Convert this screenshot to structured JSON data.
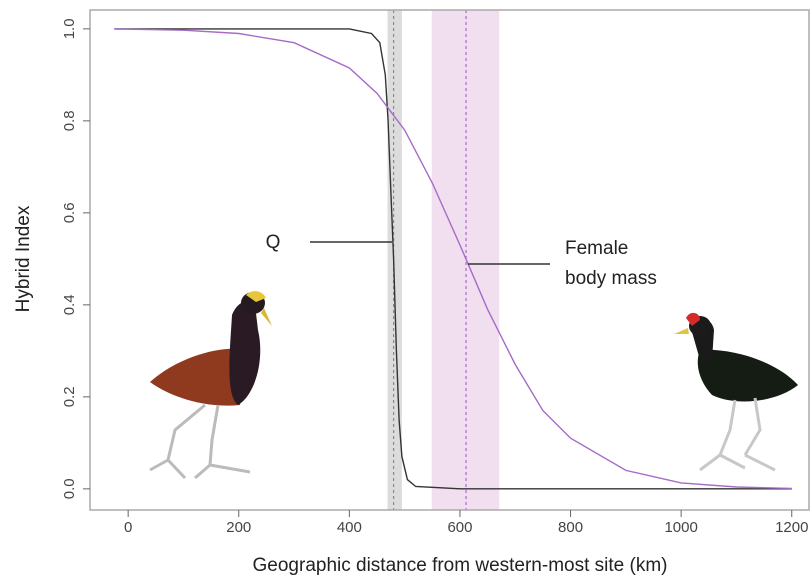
{
  "chart_data": {
    "type": "line",
    "xlabel": "Geographic distance from western-most site (km)",
    "ylabel": "Hybrid Index",
    "xlim": [
      -69,
      1233
    ],
    "ylim": [
      -0.046,
      1.041
    ],
    "xticks": [
      0,
      200,
      400,
      600,
      800,
      1000,
      1200
    ],
    "yticks": [
      {
        "value": 0,
        "label": "0.0"
      },
      0.2,
      0.4,
      0.6,
      0.8,
      {
        "value": 1,
        "label": "1.0"
      }
    ],
    "bands": [
      {
        "range": [
          469,
          495
        ],
        "center": 480,
        "color": "#dcdcdc",
        "line_color": "#888888"
      },
      {
        "range": [
          549,
          671
        ],
        "center": 611,
        "color": "#f1deef",
        "line_color": "#a56bc7"
      }
    ],
    "series": [
      {
        "color": "#333333",
        "x": [
          -25,
          100,
          200,
          300,
          400,
          440,
          455,
          465,
          470,
          475,
          480,
          485,
          490,
          495,
          505,
          520,
          600,
          800,
          1000,
          1200
        ],
        "values": [
          1,
          1,
          1,
          1,
          1,
          0.99,
          0.97,
          0.9,
          0.8,
          0.65,
          0.5,
          0.3,
          0.15,
          0.07,
          0.02,
          0.005,
          0,
          0,
          0,
          0
        ]
      },
      {
        "color": "#a56bc7",
        "x": [
          -25,
          100,
          200,
          300,
          400,
          450,
          500,
          550,
          600,
          650,
          700,
          750,
          800,
          900,
          1000,
          1100,
          1200
        ],
        "values": [
          1,
          0.997,
          0.99,
          0.97,
          0.915,
          0.86,
          0.78,
          0.665,
          0.53,
          0.39,
          0.27,
          0.17,
          0.11,
          0.04,
          0.013,
          0.004,
          0.001
        ]
      }
    ],
    "annotations": [
      {
        "text": "Q"
      },
      {
        "lines": [
          "Female",
          "body mass"
        ]
      }
    ]
  }
}
